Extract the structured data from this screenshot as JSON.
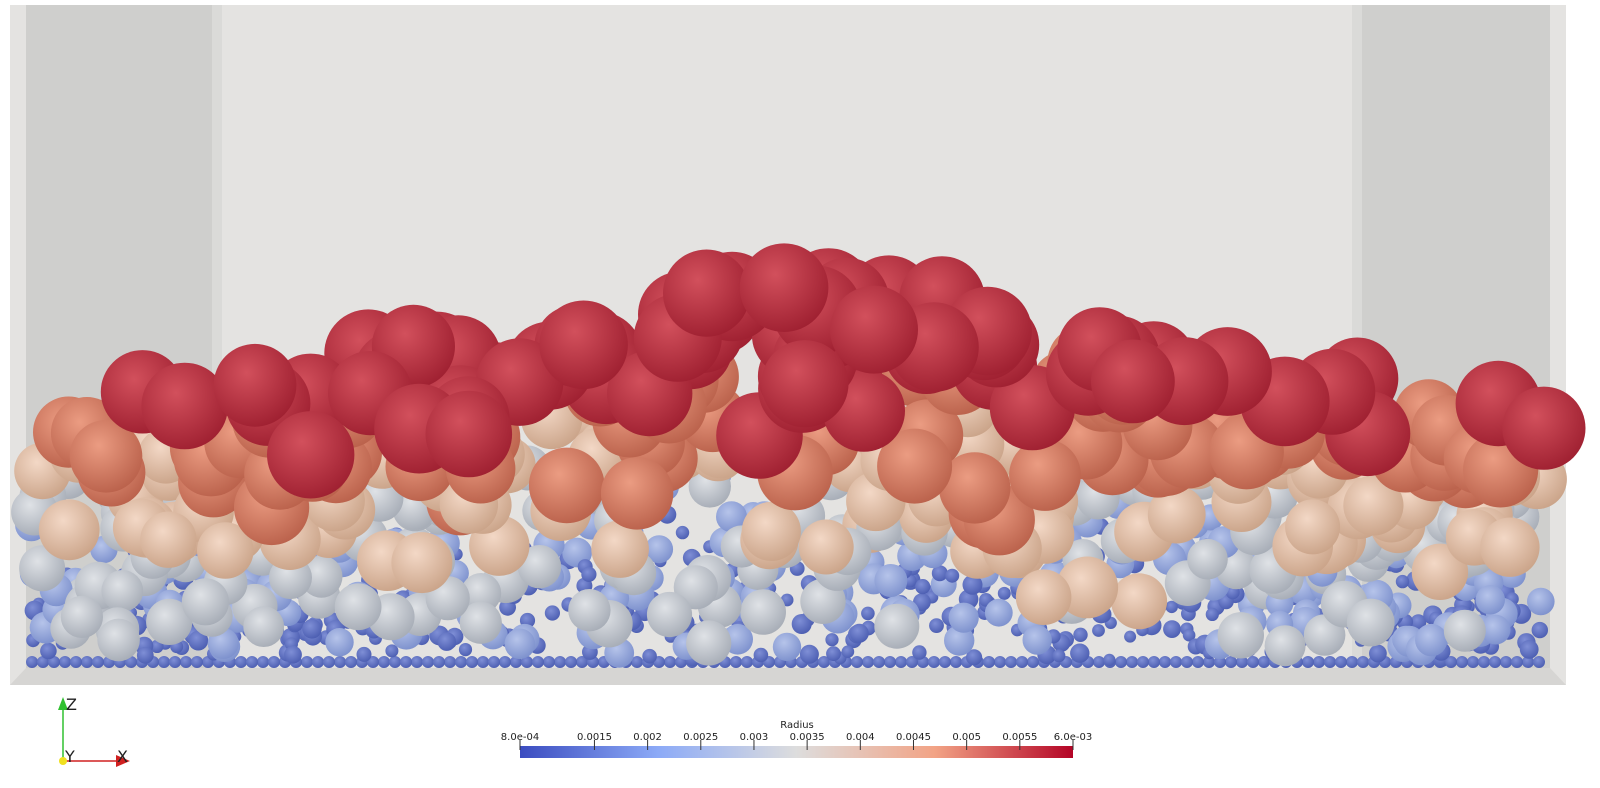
{
  "colorbar": {
    "title": "Radius",
    "range": [
      0.0008,
      0.006
    ],
    "ticks": [
      {
        "value": 0.0008,
        "label": "8.0e-04"
      },
      0.0015,
      0.002,
      0.0025,
      0.003,
      0.0035,
      0.004,
      0.0045,
      0.005,
      0.0055,
      {
        "value": 0.006,
        "label": "6.0e-03"
      }
    ]
  },
  "axes": {
    "z": "Z",
    "y": "Y",
    "x": "X"
  }
}
